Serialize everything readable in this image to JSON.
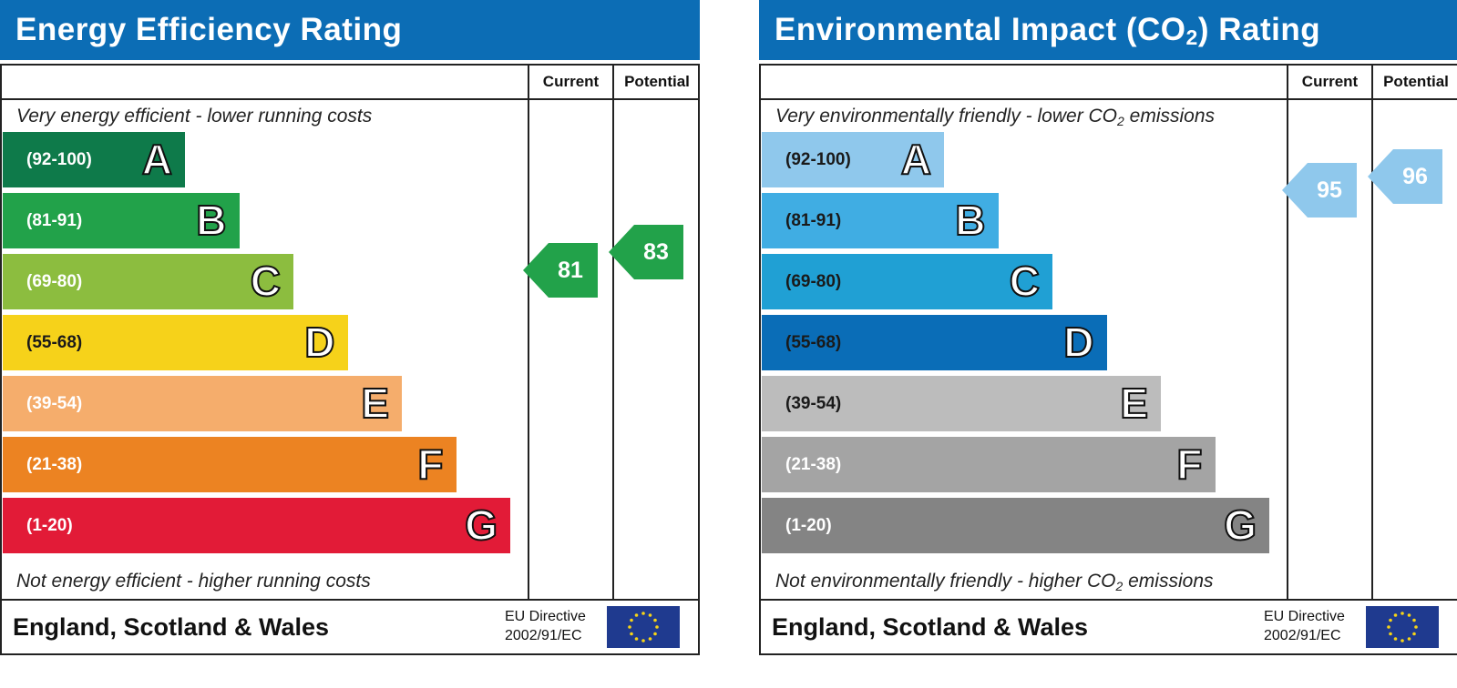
{
  "chart_data": [
    {
      "type": "bar",
      "title": "Energy Efficiency Rating",
      "column_headers": [
        "Current",
        "Potential"
      ],
      "top_note": "Very energy efficient - lower running costs",
      "bottom_note": "Not energy efficient - higher running costs",
      "categories": [
        "(92-100)",
        "(81-91)",
        "(69-80)",
        "(55-68)",
        "(39-54)",
        "(21-38)",
        "(1-20)"
      ],
      "letters": [
        "A",
        "B",
        "C",
        "D",
        "E",
        "F",
        "G"
      ],
      "band_colors": [
        "#0e7a4a",
        "#22a24a",
        "#8cbd3f",
        "#f6d21a",
        "#f5ad6c",
        "#ec8322",
        "#e21b37"
      ],
      "dark_label_bands": [
        "D"
      ],
      "current": {
        "value": 81,
        "band": "B",
        "color": "#22a24a"
      },
      "potential": {
        "value": 83,
        "band": "B",
        "color": "#22a24a"
      },
      "footer": {
        "region": "England, Scotland & Wales",
        "directive_line1": "EU Directive",
        "directive_line2": "2002/91/EC"
      }
    },
    {
      "type": "bar",
      "title_main": "Environmental Impact (CO",
      "title_sub": "2",
      "title_end": ") Rating",
      "column_headers": [
        "Current",
        "Potential"
      ],
      "top_note_main": "Very environmentally friendly - lower CO",
      "top_note_sub": "2",
      "top_note_end": " emissions",
      "bottom_note_main": "Not environmentally friendly - higher CO",
      "bottom_note_sub": "2",
      "bottom_note_end": " emissions",
      "categories": [
        "(92-100)",
        "(81-91)",
        "(69-80)",
        "(55-68)",
        "(39-54)",
        "(21-38)",
        "(1-20)"
      ],
      "letters": [
        "A",
        "B",
        "C",
        "D",
        "E",
        "F",
        "G"
      ],
      "band_colors": [
        "#8fc8ec",
        "#40ade3",
        "#20a0d4",
        "#0a6db7",
        "#bcbcbc",
        "#a4a4a4",
        "#848484"
      ],
      "dark_label_bands": [
        "A",
        "B",
        "C",
        "D",
        "E"
      ],
      "current": {
        "value": 95,
        "band": "A",
        "color": "#8fc8ec"
      },
      "potential": {
        "value": 96,
        "band": "A",
        "color": "#8fc8ec"
      },
      "footer": {
        "region": "England, Scotland & Wales",
        "directive_line1": "EU Directive",
        "directive_line2": "2002/91/EC"
      }
    }
  ]
}
